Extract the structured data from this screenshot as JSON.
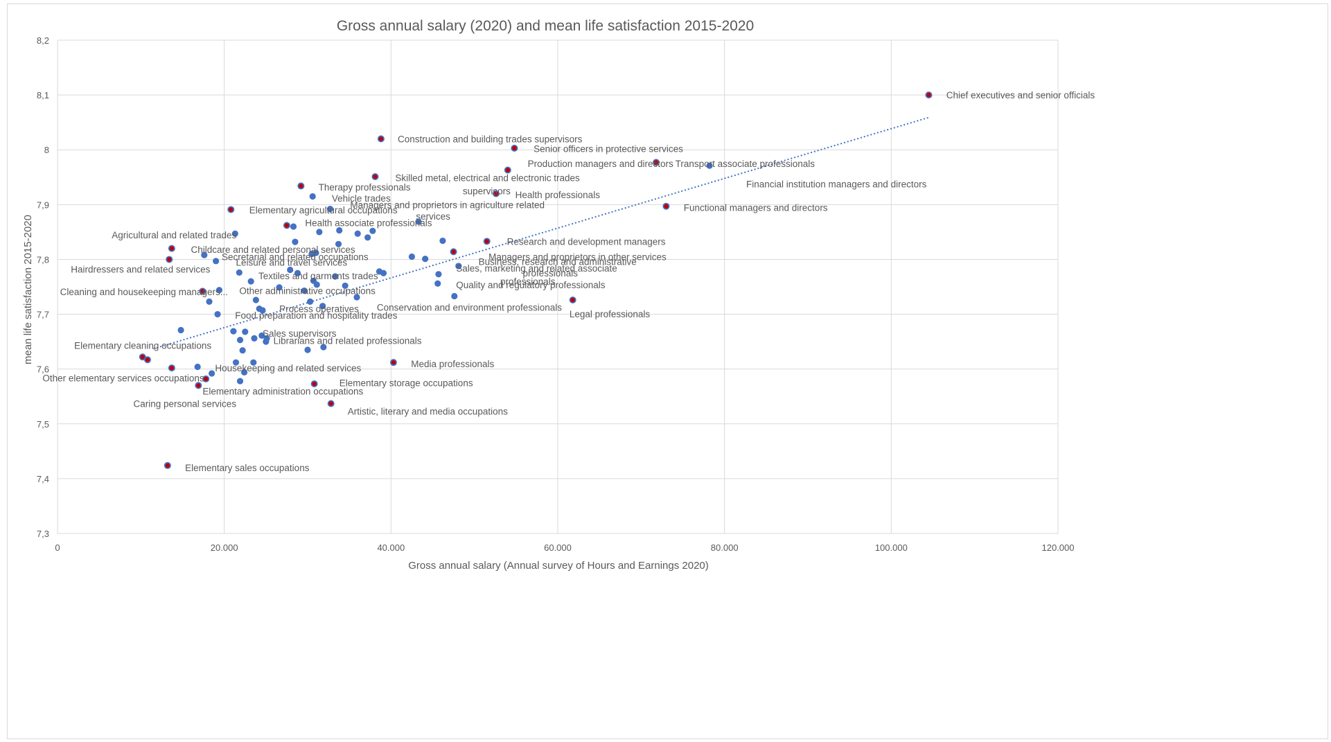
{
  "chart_data": {
    "type": "scatter",
    "title": "Gross annual salary (2020) and mean life satisfaction 2015-2020",
    "xlabel": "Gross annual salary (Annual survey of Hours and Earnings 2020)",
    "ylabel": "mean life satisfaction 2015-2020",
    "xlim": [
      0,
      120000
    ],
    "ylim": [
      7.3,
      8.2
    ],
    "x_ticks": [
      0,
      20000,
      40000,
      60000,
      80000,
      100000,
      120000
    ],
    "x_tick_labels": [
      "0",
      "20.000",
      "40.000",
      "60.000",
      "80.000",
      "100.000",
      "120.000"
    ],
    "y_ticks": [
      7.3,
      7.4,
      7.5,
      7.6,
      7.7,
      7.8,
      7.9,
      8.0,
      8.1,
      8.2
    ],
    "y_tick_labels": [
      "7,3",
      "7,4",
      "7,5",
      "7,6",
      "7,7",
      "7,8",
      "7,9",
      "8",
      "8,1",
      "8,2"
    ],
    "grid": true,
    "legend": "none",
    "colors": {
      "point": "#4472c4",
      "highlight": "#c00000",
      "trend": "#4472c4",
      "grid": "#d9d9d9",
      "text": "#595959"
    },
    "trendline": {
      "style": "dotted",
      "x": [
        11500,
        104500
      ],
      "y": [
        7.637,
        8.059
      ]
    },
    "highlighted_points": [
      {
        "label": "Chief executives and senior officials",
        "x": 104500,
        "y": 8.1
      },
      {
        "label": "Construction and building trades supervisors",
        "x": 38800,
        "y": 8.02
      },
      {
        "label": "Senior officers in protective services",
        "x": 54800,
        "y": 8.003
      },
      {
        "label": "Production managers and directors",
        "x": 54000,
        "y": 7.963
      },
      {
        "label": "",
        "x": 71800,
        "y": 7.977
      },
      {
        "label": "",
        "x": 38100,
        "y": 7.951
      },
      {
        "label": "",
        "x": 29200,
        "y": 7.934
      },
      {
        "label": "",
        "x": 52600,
        "y": 7.92
      },
      {
        "label": "Functional managers and directors",
        "x": 73000,
        "y": 7.897
      },
      {
        "label": "",
        "x": 20800,
        "y": 7.891
      },
      {
        "label": "",
        "x": 27500,
        "y": 7.862
      },
      {
        "label": "Research and development managers",
        "x": 51500,
        "y": 7.833
      },
      {
        "label": "",
        "x": 13700,
        "y": 7.82
      },
      {
        "label": "",
        "x": 47500,
        "y": 7.814
      },
      {
        "label": "Hairdressers and related services",
        "x": 13400,
        "y": 7.8
      },
      {
        "label": "",
        "x": 17400,
        "y": 7.742
      },
      {
        "label": "Legal professionals",
        "x": 61800,
        "y": 7.726
      },
      {
        "label": "",
        "x": 10200,
        "y": 7.622
      },
      {
        "label": "",
        "x": 10800,
        "y": 7.617
      },
      {
        "label": "Media professionals",
        "x": 40300,
        "y": 7.612
      },
      {
        "label": "",
        "x": 13700,
        "y": 7.602
      },
      {
        "label": "",
        "x": 17800,
        "y": 7.582
      },
      {
        "label": "Elementary storage occupations",
        "x": 30800,
        "y": 7.573
      },
      {
        "label": "",
        "x": 16900,
        "y": 7.57
      },
      {
        "label": "Artistic, literary and media occupations",
        "x": 32800,
        "y": 7.537
      },
      {
        "label": "Elementary sales occupations",
        "x": 13200,
        "y": 7.424
      }
    ],
    "points": [
      {
        "x": 78200,
        "y": 7.971
      },
      {
        "x": 30600,
        "y": 7.915
      },
      {
        "x": 32700,
        "y": 7.892
      },
      {
        "x": 43300,
        "y": 7.869
      },
      {
        "x": 21300,
        "y": 7.847
      },
      {
        "x": 28300,
        "y": 7.86
      },
      {
        "x": 31400,
        "y": 7.85
      },
      {
        "x": 33800,
        "y": 7.853
      },
      {
        "x": 36000,
        "y": 7.847
      },
      {
        "x": 37200,
        "y": 7.84
      },
      {
        "x": 37800,
        "y": 7.852
      },
      {
        "x": 28500,
        "y": 7.832
      },
      {
        "x": 33700,
        "y": 7.828
      },
      {
        "x": 46200,
        "y": 7.834
      },
      {
        "x": 17600,
        "y": 7.808
      },
      {
        "x": 19000,
        "y": 7.797
      },
      {
        "x": 30500,
        "y": 7.81
      },
      {
        "x": 31000,
        "y": 7.812
      },
      {
        "x": 42500,
        "y": 7.805
      },
      {
        "x": 44100,
        "y": 7.801
      },
      {
        "x": 48100,
        "y": 7.788
      },
      {
        "x": 21800,
        "y": 7.776
      },
      {
        "x": 27900,
        "y": 7.781
      },
      {
        "x": 28800,
        "y": 7.775
      },
      {
        "x": 38600,
        "y": 7.778
      },
      {
        "x": 39100,
        "y": 7.775
      },
      {
        "x": 45700,
        "y": 7.773
      },
      {
        "x": 33300,
        "y": 7.769
      },
      {
        "x": 23200,
        "y": 7.76
      },
      {
        "x": 30700,
        "y": 7.761
      },
      {
        "x": 31100,
        "y": 7.754
      },
      {
        "x": 34500,
        "y": 7.752
      },
      {
        "x": 45600,
        "y": 7.756
      },
      {
        "x": 19400,
        "y": 7.744
      },
      {
        "x": 26600,
        "y": 7.749
      },
      {
        "x": 29600,
        "y": 7.743
      },
      {
        "x": 35900,
        "y": 7.731
      },
      {
        "x": 47600,
        "y": 7.733
      },
      {
        "x": 18200,
        "y": 7.723
      },
      {
        "x": 23800,
        "y": 7.726
      },
      {
        "x": 30300,
        "y": 7.723
      },
      {
        "x": 31800,
        "y": 7.715
      },
      {
        "x": 24200,
        "y": 7.71
      },
      {
        "x": 24600,
        "y": 7.707
      },
      {
        "x": 19200,
        "y": 7.7
      },
      {
        "x": 14800,
        "y": 7.671
      },
      {
        "x": 21100,
        "y": 7.669
      },
      {
        "x": 22500,
        "y": 7.668
      },
      {
        "x": 24500,
        "y": 7.661
      },
      {
        "x": 23600,
        "y": 7.656
      },
      {
        "x": 21900,
        "y": 7.653
      },
      {
        "x": 25100,
        "y": 7.656
      },
      {
        "x": 25000,
        "y": 7.65
      },
      {
        "x": 31900,
        "y": 7.64
      },
      {
        "x": 30000,
        "y": 7.635
      },
      {
        "x": 22200,
        "y": 7.634
      },
      {
        "x": 21400,
        "y": 7.612
      },
      {
        "x": 23500,
        "y": 7.612
      },
      {
        "x": 16800,
        "y": 7.604
      },
      {
        "x": 22400,
        "y": 7.594
      },
      {
        "x": 18500,
        "y": 7.592
      },
      {
        "x": 21900,
        "y": 7.578
      }
    ],
    "annotations": [
      {
        "text": "Construction and building trades supervisors",
        "x": 40800,
        "y": 8.02
      },
      {
        "text": "Senior officers in protective services",
        "x": 57100,
        "y": 8.002
      },
      {
        "text": "Production managers and directors",
        "x": 56400,
        "y": 7.975
      },
      {
        "text": "Transport associate professionals",
        "x": 74100,
        "y": 7.975
      },
      {
        "text": "Skilled metal, electrical and electronic trades",
        "x": 40500,
        "y": 7.949
      },
      {
        "text": "supervisors",
        "x": 48600,
        "y": 7.925
      },
      {
        "text": "Therapy professionals",
        "x": 31300,
        "y": 7.932
      },
      {
        "text": "Financial institution managers and directors",
        "x": 82600,
        "y": 7.938
      },
      {
        "text": "Health professionals",
        "x": 54900,
        "y": 7.918
      },
      {
        "text": "Vehicle trades",
        "x": 32900,
        "y": 7.912
      },
      {
        "text": "Managers and proprietors in agriculture related",
        "x": 35100,
        "y": 7.9
      },
      {
        "text": "services",
        "x": 43000,
        "y": 7.879
      },
      {
        "text": "Functional managers and directors",
        "x": 75100,
        "y": 7.895
      },
      {
        "text": "Elementary agricultural occupations",
        "x": 23000,
        "y": 7.89
      },
      {
        "text": "Health associate professionals",
        "x": 29700,
        "y": 7.867
      },
      {
        "text": "Agricultural and related trades",
        "x": 6500,
        "y": 7.845
      },
      {
        "text": "Research and development managers",
        "x": 53900,
        "y": 7.833
      },
      {
        "text": "Childcare and related personal services",
        "x": 16000,
        "y": 7.818
      },
      {
        "text": "Secretarial and related occupations",
        "x": 19700,
        "y": 7.805
      },
      {
        "text": "Managers and proprietors in other services",
        "x": 51700,
        "y": 7.805
      },
      {
        "text": "Leisure and travel services",
        "x": 21400,
        "y": 7.795
      },
      {
        "text": "Business, research and administrative",
        "x": 50500,
        "y": 7.796
      },
      {
        "text": "Hairdressers and related services",
        "x": 1600,
        "y": 7.782
      },
      {
        "text": "Sales, marketing and related associate",
        "x": 47800,
        "y": 7.784
      },
      {
        "text": "professionals",
        "x": 55800,
        "y": 7.775
      },
      {
        "text": "Textiles and garments trades",
        "x": 24100,
        "y": 7.77
      },
      {
        "text": "professionals",
        "x": 53100,
        "y": 7.76
      },
      {
        "text": "Quality and regulatory professionals",
        "x": 47800,
        "y": 7.754
      },
      {
        "text": "Other administrative occupations",
        "x": 21800,
        "y": 7.743
      },
      {
        "text": "Cleaning and housekeeping managers...",
        "x": 300,
        "y": 7.741
      },
      {
        "text": "Conservation and environment professionals",
        "x": 38300,
        "y": 7.713
      },
      {
        "text": "Process operatives",
        "x": 26600,
        "y": 7.71
      },
      {
        "text": "Legal professionals",
        "x": 61400,
        "y": 7.701
      },
      {
        "text": "Food preparation and hospitality trades",
        "x": 21300,
        "y": 7.698
      },
      {
        "text": "Sales supervisors",
        "x": 24600,
        "y": 7.665
      },
      {
        "text": "Librarians and related professionals",
        "x": 25900,
        "y": 7.652
      },
      {
        "text": "Elementary cleaning occupations",
        "x": 2000,
        "y": 7.643
      },
      {
        "text": "Media professionals",
        "x": 42400,
        "y": 7.61
      },
      {
        "text": "Housekeeping and related services",
        "x": 18900,
        "y": 7.602
      },
      {
        "text": "Other elementary services occupations",
        "x": -1800,
        "y": 7.584
      },
      {
        "text": "Elementary storage occupations",
        "x": 33800,
        "y": 7.575
      },
      {
        "text": "Elementary administration occupations",
        "x": 17400,
        "y": 7.56
      },
      {
        "text": "Caring personal services",
        "x": 9100,
        "y": 7.537
      },
      {
        "text": "Artistic, literary and media occupations",
        "x": 34800,
        "y": 7.523
      },
      {
        "text": "Elementary sales occupations",
        "x": 15300,
        "y": 7.42
      },
      {
        "text": "Chief executives and senior officials",
        "x": 106600,
        "y": 8.1
      }
    ]
  }
}
